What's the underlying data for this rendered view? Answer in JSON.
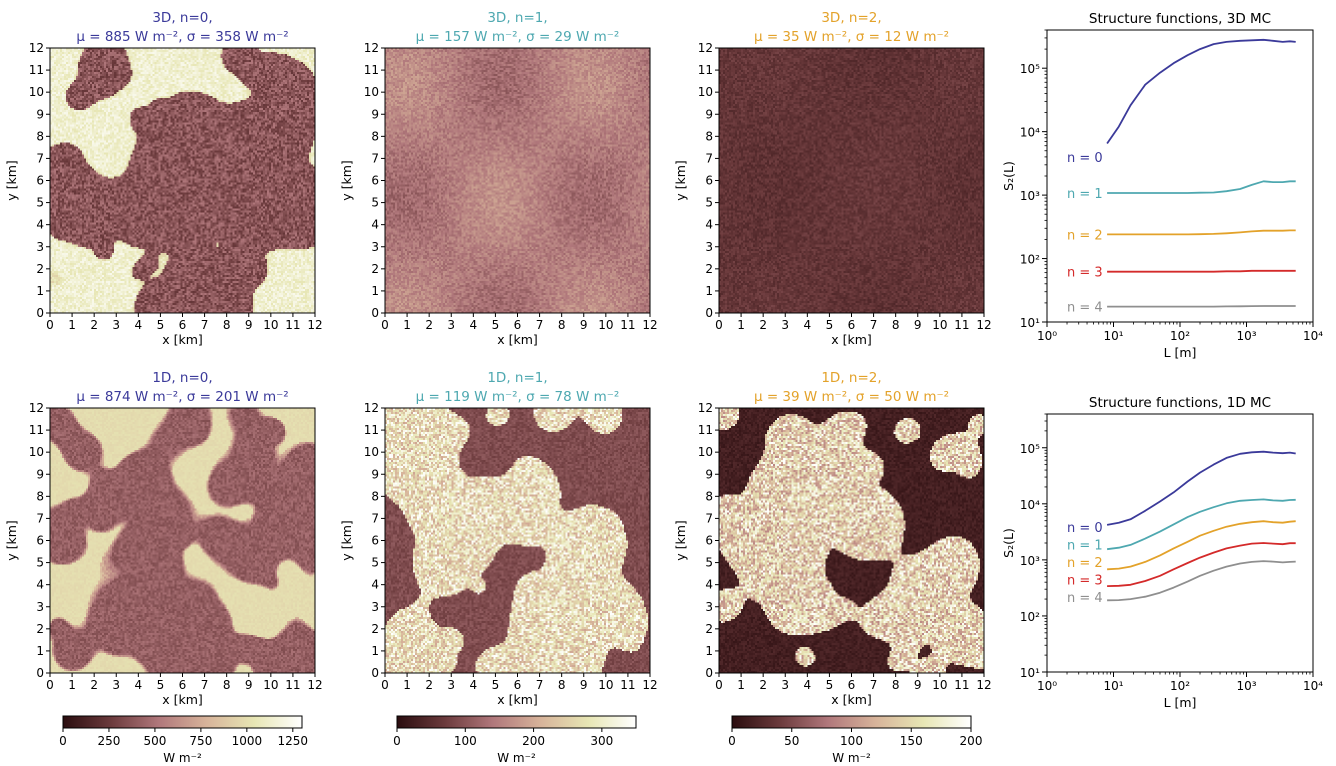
{
  "colors": {
    "n0": "#3b3a9a",
    "n1": "#4ea8b0",
    "n2": "#e3a22a",
    "n3": "#d42a2a",
    "n4": "#8f8f8f",
    "map_stops": [
      "#2a0d0f",
      "#6b3a3c",
      "#b0777b",
      "#d7b39a",
      "#e7e6b4",
      "#ffffff"
    ]
  },
  "panels": [
    {
      "title_line1": "3D, n=0,",
      "title_line2": "μ = 885 W m⁻², σ = 358 W m⁻²",
      "color_key": "n0",
      "mean": 885,
      "std": 358,
      "vmax": 1300,
      "pattern": "bright-bg-dark-clouds"
    },
    {
      "title_line1": "3D, n=1,",
      "title_line2": "μ = 157 W m⁻², σ = 29 W m⁻²",
      "color_key": "n1",
      "mean": 157,
      "std": 29,
      "vmax": 350,
      "pattern": "smooth-noisy"
    },
    {
      "title_line1": "3D, n=2,",
      "title_line2": "μ = 35 W m⁻², σ = 12 W m⁻²",
      "color_key": "n2",
      "mean": 35,
      "std": 12,
      "vmax": 200,
      "pattern": "dark-noisy"
    },
    {
      "title_line1": "1D, n=0,",
      "title_line2": "μ = 874 W m⁻², σ = 201 W m⁻²",
      "color_key": "n0",
      "mean": 874,
      "std": 201,
      "vmax": 1300,
      "pattern": "bright-bg-shadowy-clouds"
    },
    {
      "title_line1": "1D, n=1,",
      "title_line2": "μ = 119 W m⁻², σ = 78 W m⁻²",
      "color_key": "n1",
      "mean": 119,
      "std": 78,
      "vmax": 350,
      "pattern": "mid-bg-bright-clouds"
    },
    {
      "title_line1": "1D, n=2,",
      "title_line2": "μ = 39 W m⁻², σ = 50 W m⁻²",
      "color_key": "n2",
      "mean": 39,
      "std": 50,
      "vmax": 200,
      "pattern": "dark-bg-bright-clouds"
    }
  ],
  "map_axes": {
    "xlabel": "x [km]",
    "ylabel": "y [km]",
    "ticks": [
      "0",
      "1",
      "2",
      "3",
      "4",
      "5",
      "6",
      "7",
      "8",
      "9",
      "10",
      "11",
      "12"
    ]
  },
  "colorbars": [
    {
      "ticks": [
        "0",
        "250",
        "500",
        "750",
        "1000",
        "1250"
      ],
      "tick_values": [
        0,
        250,
        500,
        750,
        1000,
        1250
      ],
      "vmax": 1300,
      "label": "W m⁻²"
    },
    {
      "ticks": [
        "0",
        "100",
        "200",
        "300"
      ],
      "tick_values": [
        0,
        100,
        200,
        300
      ],
      "vmax": 350,
      "label": "W m⁻²"
    },
    {
      "ticks": [
        "0",
        "50",
        "100",
        "150",
        "200"
      ],
      "tick_values": [
        0,
        50,
        100,
        150,
        200
      ],
      "vmax": 200,
      "label": "W m⁻²"
    }
  ],
  "chart_data": [
    {
      "type": "line",
      "title": "Structure functions, 3D MC",
      "xlabel": "L [m]",
      "ylabel": "S₂(L)",
      "xscale": "log",
      "yscale": "log",
      "xlim": [
        1,
        10000
      ],
      "ylim": [
        10,
        400000
      ],
      "x_ticks": [
        "10⁰",
        "10¹",
        "10²",
        "10³",
        "10⁴"
      ],
      "y_ticks": [
        "10¹",
        "10²",
        "10³",
        "10⁴",
        "10⁵"
      ],
      "x": [
        8,
        12,
        18,
        30,
        50,
        80,
        130,
        200,
        320,
        500,
        800,
        1200,
        1800,
        2500,
        3500,
        4500,
        5500
      ],
      "series": [
        {
          "name": "n = 0",
          "color_key": "n0",
          "values": [
            6500,
            12000,
            26000,
            55000,
            85000,
            120000,
            160000,
            200000,
            240000,
            260000,
            270000,
            275000,
            280000,
            270000,
            260000,
            265000,
            260000
          ]
        },
        {
          "name": "n = 1",
          "color_key": "n1",
          "values": [
            1080,
            1080,
            1080,
            1080,
            1080,
            1080,
            1080,
            1090,
            1100,
            1150,
            1250,
            1450,
            1650,
            1600,
            1600,
            1650,
            1650
          ]
        },
        {
          "name": "n = 2",
          "color_key": "n2",
          "values": [
            240,
            240,
            240,
            240,
            240,
            240,
            240,
            242,
            245,
            250,
            258,
            268,
            275,
            275,
            275,
            278,
            278
          ]
        },
        {
          "name": "n = 3",
          "color_key": "n3",
          "values": [
            62,
            62,
            62,
            62,
            62,
            62,
            62,
            62,
            62,
            63,
            63,
            64,
            64,
            64,
            64,
            64,
            64
          ]
        },
        {
          "name": "n = 4",
          "color_key": "n4",
          "values": [
            17.5,
            17.5,
            17.5,
            17.5,
            17.5,
            17.5,
            17.5,
            17.5,
            17.5,
            17.6,
            17.7,
            17.8,
            17.9,
            17.9,
            17.9,
            17.9,
            17.9
          ]
        }
      ]
    },
    {
      "type": "line",
      "title": "Structure functions, 1D MC",
      "xlabel": "L [m]",
      "ylabel": "S₂(L)",
      "xscale": "log",
      "yscale": "log",
      "xlim": [
        1,
        10000
      ],
      "ylim": [
        10,
        400000
      ],
      "x_ticks": [
        "10⁰",
        "10¹",
        "10²",
        "10³",
        "10⁴"
      ],
      "y_ticks": [
        "10¹",
        "10²",
        "10³",
        "10⁴",
        "10⁵"
      ],
      "x": [
        8,
        12,
        18,
        30,
        50,
        80,
        130,
        200,
        320,
        500,
        800,
        1200,
        1800,
        2500,
        3500,
        4500,
        5500
      ],
      "series": [
        {
          "name": "n = 0",
          "color_key": "n0",
          "values": [
            4200,
            4600,
            5300,
            7500,
            11000,
            16000,
            25000,
            36000,
            50000,
            66000,
            78000,
            83000,
            85000,
            82000,
            80000,
            82000,
            79000
          ]
        },
        {
          "name": "n = 1",
          "color_key": "n1",
          "values": [
            1550,
            1650,
            1850,
            2400,
            3200,
            4300,
            5800,
            7200,
            8700,
            10200,
            11300,
            11700,
            12000,
            11500,
            11300,
            11700,
            11800
          ]
        },
        {
          "name": "n = 2",
          "color_key": "n2",
          "values": [
            680,
            700,
            760,
            920,
            1200,
            1600,
            2100,
            2700,
            3300,
            3900,
            4400,
            4700,
            4900,
            4700,
            4600,
            4800,
            4900
          ]
        },
        {
          "name": "n = 3",
          "color_key": "n3",
          "values": [
            340,
            345,
            360,
            420,
            520,
            680,
            880,
            1100,
            1350,
            1600,
            1800,
            1950,
            2000,
            1950,
            1900,
            1980,
            1980
          ]
        },
        {
          "name": "n = 4",
          "color_key": "n4",
          "values": [
            190,
            192,
            200,
            220,
            260,
            320,
            410,
            520,
            640,
            760,
            860,
            920,
            950,
            930,
            900,
            920,
            930
          ]
        }
      ]
    }
  ]
}
